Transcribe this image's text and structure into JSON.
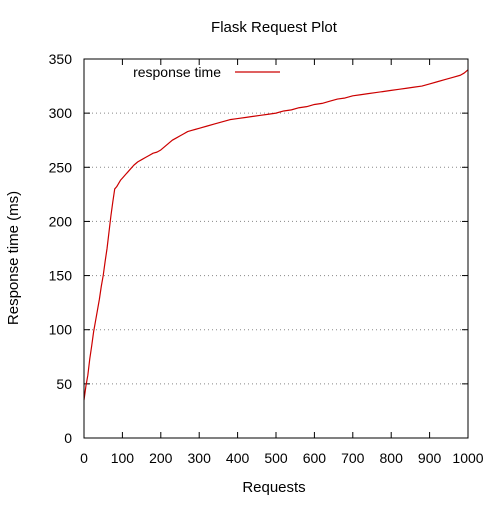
{
  "chart_data": {
    "type": "line",
    "title": "Flask Request Plot",
    "xlabel": "Requests",
    "ylabel": "Response time (ms)",
    "xlim": [
      0,
      1000
    ],
    "ylim": [
      0,
      350
    ],
    "x_ticks": [
      0,
      100,
      200,
      300,
      400,
      500,
      600,
      700,
      800,
      900,
      1000
    ],
    "y_ticks": [
      0,
      50,
      100,
      150,
      200,
      250,
      300,
      350
    ],
    "grid": "horizontal dotted",
    "legend_position": "top-left",
    "series": [
      {
        "name": "response time",
        "color": "#cc0000",
        "x": [
          0,
          5,
          10,
          15,
          20,
          25,
          30,
          35,
          40,
          45,
          50,
          55,
          60,
          65,
          70,
          75,
          80,
          85,
          90,
          95,
          100,
          110,
          120,
          130,
          140,
          150,
          160,
          170,
          180,
          190,
          200,
          210,
          220,
          230,
          240,
          250,
          260,
          270,
          280,
          290,
          300,
          320,
          340,
          360,
          380,
          400,
          420,
          440,
          460,
          480,
          500,
          520,
          540,
          560,
          580,
          600,
          620,
          640,
          660,
          680,
          700,
          720,
          740,
          760,
          780,
          800,
          820,
          840,
          860,
          880,
          900,
          920,
          940,
          960,
          980,
          990,
          1000
        ],
        "y": [
          35,
          48,
          58,
          73,
          85,
          98,
          108,
          118,
          128,
          140,
          150,
          163,
          175,
          190,
          205,
          218,
          230,
          232,
          235,
          238,
          240,
          244,
          248,
          252,
          255,
          257,
          259,
          261,
          263,
          264,
          266,
          269,
          272,
          275,
          277,
          279,
          281,
          283,
          284,
          285,
          286,
          288,
          290,
          292,
          294,
          295,
          296,
          297,
          298,
          299,
          300,
          302,
          303,
          305,
          306,
          308,
          309,
          311,
          313,
          314,
          316,
          317,
          318,
          319,
          320,
          321,
          322,
          323,
          324,
          325,
          327,
          329,
          331,
          333,
          335,
          337,
          340
        ]
      }
    ]
  }
}
